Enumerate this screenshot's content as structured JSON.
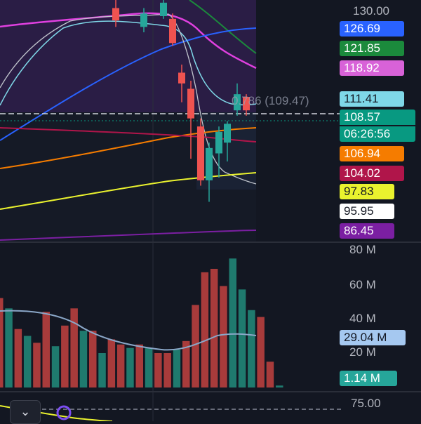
{
  "price_axis": {
    "top_label": "130.00"
  },
  "price_tags": [
    {
      "label": "126.69",
      "bg": "#2962ff",
      "fg": "#ffffff"
    },
    {
      "label": "121.85",
      "bg": "#1b8a3c",
      "fg": "#ffffff"
    },
    {
      "label": "118.92",
      "bg": "#d862d8",
      "fg": "#ffffff"
    },
    {
      "label": "111.41",
      "bg": "#7fd8e8",
      "fg": "#131722"
    },
    {
      "label": "108.57",
      "bg": "#089981",
      "fg": "#ffffff"
    },
    {
      "label": "06:26:56",
      "bg": "#089981",
      "fg": "#ffffff"
    },
    {
      "label": "106.94",
      "bg": "#f57c00",
      "fg": "#ffffff"
    },
    {
      "label": "104.02",
      "bg": "#b0154a",
      "fg": "#ffffff"
    },
    {
      "label": "97.83",
      "bg": "#eaf22e",
      "fg": "#131722"
    },
    {
      "label": "95.95",
      "bg": "#ffffff",
      "fg": "#131722"
    },
    {
      "label": "86.45",
      "bg": "#7b1fa2",
      "fg": "#ffffff"
    }
  ],
  "overlay_label": "0.786 (109.47)",
  "volume_axis": [
    "80 M",
    "60 M",
    "40 M",
    "20 M"
  ],
  "volume_tags": [
    {
      "label": "29.04 M",
      "bg": "#a5c8f0",
      "fg": "#131722"
    },
    {
      "label": "1.14 M",
      "bg": "#26a69a",
      "fg": "#ffffff"
    }
  ],
  "bottom_pane": {
    "axis_label": "75.00"
  },
  "colors": {
    "up": "#26a69a",
    "down": "#ef5350",
    "vol_up": "#1f7a6e",
    "vol_down": "#a83b3b",
    "background": "#131722",
    "upper_band_fill": "#2d1f4a"
  },
  "icons": {
    "collapse": "chevron-down-icon",
    "indicator": "circle-marker-icon"
  },
  "chart_data": {
    "type": "candlestick",
    "candles": [
      {
        "open": 129.5,
        "close": 127.2,
        "high": 131.0,
        "low": 126.0
      },
      {
        "open": 126.0,
        "close": 128.5,
        "high": 129.5,
        "low": 125.0
      },
      {
        "open": 128.0,
        "close": 130.5,
        "high": 131.5,
        "low": 127.5
      },
      {
        "open": 127.5,
        "close": 123.0,
        "high": 128.5,
        "low": 122.5
      },
      {
        "open": 117.5,
        "close": 115.5,
        "high": 119.0,
        "low": 112.0
      },
      {
        "open": 114.5,
        "close": 109.0,
        "high": 116.0,
        "low": 101.5
      },
      {
        "open": 107.5,
        "close": 97.5,
        "high": 109.0,
        "low": 96.5
      },
      {
        "open": 97.5,
        "close": 103.5,
        "high": 104.5,
        "low": 93.5
      },
      {
        "open": 102.5,
        "close": 106.5,
        "high": 107.5,
        "low": 98.0
      },
      {
        "open": 104.5,
        "close": 108.0,
        "high": 108.5,
        "low": 101.0
      },
      {
        "open": 110.5,
        "close": 113.5,
        "high": 115.5,
        "low": 109.5
      },
      {
        "open": 113.0,
        "close": 110.5,
        "high": 113.5,
        "low": 109.5
      }
    ],
    "volume": {
      "values": [
        52,
        46,
        34,
        30,
        26,
        44,
        24,
        36,
        46,
        33,
        33,
        20,
        28,
        25,
        23,
        25,
        23,
        20,
        20,
        22,
        27,
        48,
        67,
        69,
        59,
        75,
        57,
        45,
        41,
        15,
        1.14
      ],
      "up": [
        false,
        true,
        false,
        true,
        false,
        false,
        true,
        false,
        false,
        true,
        false,
        true,
        false,
        false,
        true,
        false,
        true,
        false,
        false,
        true,
        false,
        false,
        false,
        false,
        false,
        true,
        true,
        true,
        false,
        false,
        true
      ]
    }
  }
}
